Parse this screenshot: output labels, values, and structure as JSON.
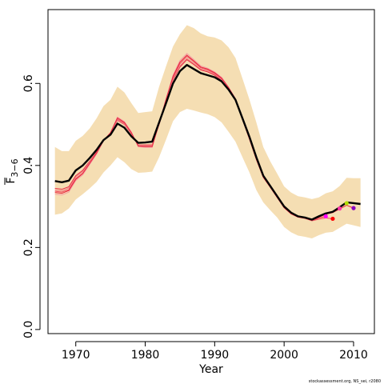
{
  "chart_data": {
    "type": "line",
    "xlabel": "Year",
    "ylabel": "F",
    "ylabel_subscript": "3−6",
    "xlim": [
      1966,
      2013
    ],
    "ylim": [
      -0.01,
      0.78
    ],
    "x_ticks": [
      1970,
      1980,
      1990,
      2000,
      2010
    ],
    "y_ticks": [
      0.0,
      0.2,
      0.4,
      0.6
    ],
    "y_tick_labels": [
      "0.0",
      "0.2",
      "0.4",
      "0.6"
    ],
    "grid": false,
    "credit": "stockassessment.org, NS_sei, r2080",
    "colors": {
      "band": "#f5deb3",
      "main": "#000000",
      "retro": [
        "#e8253f",
        "#f0505f",
        "#f07a80",
        "#f4a0a4",
        "#e8253f"
      ],
      "endpoints": [
        "#ff00ff",
        "#ff0000",
        "#ff33aa",
        "#b0e000",
        "#8a00c0"
      ]
    },
    "years": [
      1967,
      1968,
      1969,
      1970,
      1971,
      1972,
      1973,
      1974,
      1975,
      1976,
      1977,
      1978,
      1979,
      1980,
      1981,
      1982,
      1983,
      1984,
      1985,
      1986,
      1987,
      1988,
      1989,
      1990,
      1991,
      1992,
      1993,
      1994,
      1995,
      1996,
      1997,
      1998,
      1999,
      2000,
      2001,
      2002,
      2003,
      2004,
      2005,
      2006,
      2007,
      2008,
      2009,
      2010,
      2011
    ],
    "series": [
      {
        "name": "estimate",
        "values": [
          0.362,
          0.359,
          0.363,
          0.388,
          0.4,
          0.418,
          0.438,
          0.462,
          0.475,
          0.502,
          0.492,
          0.471,
          0.455,
          0.456,
          0.458,
          0.505,
          0.552,
          0.6,
          0.63,
          0.645,
          0.635,
          0.625,
          0.62,
          0.615,
          0.605,
          0.585,
          0.56,
          0.515,
          0.47,
          0.42,
          0.375,
          0.35,
          0.325,
          0.3,
          0.285,
          0.276,
          0.273,
          0.268,
          0.276,
          0.283,
          0.287,
          0.298,
          0.31,
          0.308,
          0.306
        ]
      },
      {
        "name": "lower",
        "values": [
          0.28,
          0.283,
          0.295,
          0.317,
          0.33,
          0.344,
          0.36,
          0.383,
          0.4,
          0.42,
          0.408,
          0.391,
          0.382,
          0.383,
          0.385,
          0.42,
          0.463,
          0.508,
          0.53,
          0.538,
          0.534,
          0.529,
          0.525,
          0.518,
          0.505,
          0.482,
          0.458,
          0.42,
          0.383,
          0.34,
          0.31,
          0.291,
          0.273,
          0.25,
          0.237,
          0.229,
          0.226,
          0.222,
          0.23,
          0.236,
          0.238,
          0.248,
          0.258,
          0.254,
          0.25
        ]
      },
      {
        "name": "upper",
        "values": [
          0.445,
          0.435,
          0.435,
          0.46,
          0.472,
          0.49,
          0.515,
          0.545,
          0.56,
          0.592,
          0.578,
          0.552,
          0.528,
          0.53,
          0.532,
          0.592,
          0.642,
          0.69,
          0.72,
          0.742,
          0.735,
          0.722,
          0.715,
          0.712,
          0.705,
          0.688,
          0.662,
          0.612,
          0.561,
          0.505,
          0.445,
          0.41,
          0.38,
          0.349,
          0.334,
          0.325,
          0.322,
          0.318,
          0.322,
          0.332,
          0.337,
          0.35,
          0.37,
          0.369,
          0.369
        ]
      }
    ],
    "retro_series": [
      {
        "end_year": 2006,
        "values": [
          0.344,
          0.342,
          0.348,
          0.375,
          0.388,
          0.41,
          0.433,
          0.462,
          0.478,
          0.51,
          0.5,
          0.477,
          0.45,
          0.45,
          0.45,
          0.5,
          0.556,
          0.608,
          0.64,
          0.658,
          0.646,
          0.633,
          0.628,
          0.62,
          0.608,
          0.586,
          0.56,
          0.513,
          0.466,
          0.416,
          0.372,
          0.348,
          0.323,
          0.298,
          0.283,
          0.275,
          0.272,
          0.266,
          0.272,
          0.276
        ]
      },
      {
        "end_year": 2007,
        "values": [
          0.337,
          0.335,
          0.341,
          0.368,
          0.381,
          0.405,
          0.43,
          0.461,
          0.479,
          0.513,
          0.503,
          0.479,
          0.449,
          0.448,
          0.448,
          0.501,
          0.56,
          0.614,
          0.648,
          0.666,
          0.653,
          0.638,
          0.633,
          0.624,
          0.611,
          0.588,
          0.56,
          0.512,
          0.464,
          0.414,
          0.371,
          0.347,
          0.322,
          0.297,
          0.282,
          0.274,
          0.271,
          0.265,
          0.269,
          0.272,
          0.27
        ]
      },
      {
        "end_year": 2008,
        "values": [
          0.34,
          0.338,
          0.345,
          0.372,
          0.385,
          0.408,
          0.431,
          0.461,
          0.478,
          0.511,
          0.501,
          0.478,
          0.45,
          0.449,
          0.449,
          0.5,
          0.557,
          0.61,
          0.643,
          0.661,
          0.649,
          0.635,
          0.63,
          0.622,
          0.609,
          0.587,
          0.56,
          0.512,
          0.465,
          0.415,
          0.371,
          0.347,
          0.322,
          0.297,
          0.283,
          0.275,
          0.272,
          0.267,
          0.274,
          0.282,
          0.286,
          0.295
        ]
      },
      {
        "end_year": 2009,
        "values": [
          0.33,
          0.328,
          0.335,
          0.363,
          0.377,
          0.402,
          0.428,
          0.46,
          0.48,
          0.518,
          0.507,
          0.482,
          0.446,
          0.444,
          0.444,
          0.502,
          0.563,
          0.62,
          0.656,
          0.673,
          0.658,
          0.643,
          0.637,
          0.628,
          0.615,
          0.591,
          0.563,
          0.515,
          0.467,
          0.416,
          0.372,
          0.348,
          0.323,
          0.298,
          0.283,
          0.275,
          0.272,
          0.267,
          0.275,
          0.283,
          0.288,
          0.298,
          0.308
        ]
      },
      {
        "end_year": 2010,
        "values": [
          0.334,
          0.332,
          0.339,
          0.366,
          0.38,
          0.405,
          0.43,
          0.461,
          0.48,
          0.516,
          0.505,
          0.48,
          0.447,
          0.446,
          0.446,
          0.502,
          0.561,
          0.617,
          0.652,
          0.669,
          0.655,
          0.64,
          0.635,
          0.626,
          0.613,
          0.59,
          0.562,
          0.514,
          0.466,
          0.415,
          0.371,
          0.347,
          0.322,
          0.297,
          0.282,
          0.274,
          0.271,
          0.266,
          0.274,
          0.281,
          0.285,
          0.294,
          0.303,
          0.296
        ]
      }
    ],
    "endpoints": [
      {
        "year": 2006,
        "value": 0.276
      },
      {
        "year": 2007,
        "value": 0.27
      },
      {
        "year": 2008,
        "value": 0.295
      },
      {
        "year": 2009,
        "value": 0.308
      },
      {
        "year": 2010,
        "value": 0.296
      }
    ]
  }
}
